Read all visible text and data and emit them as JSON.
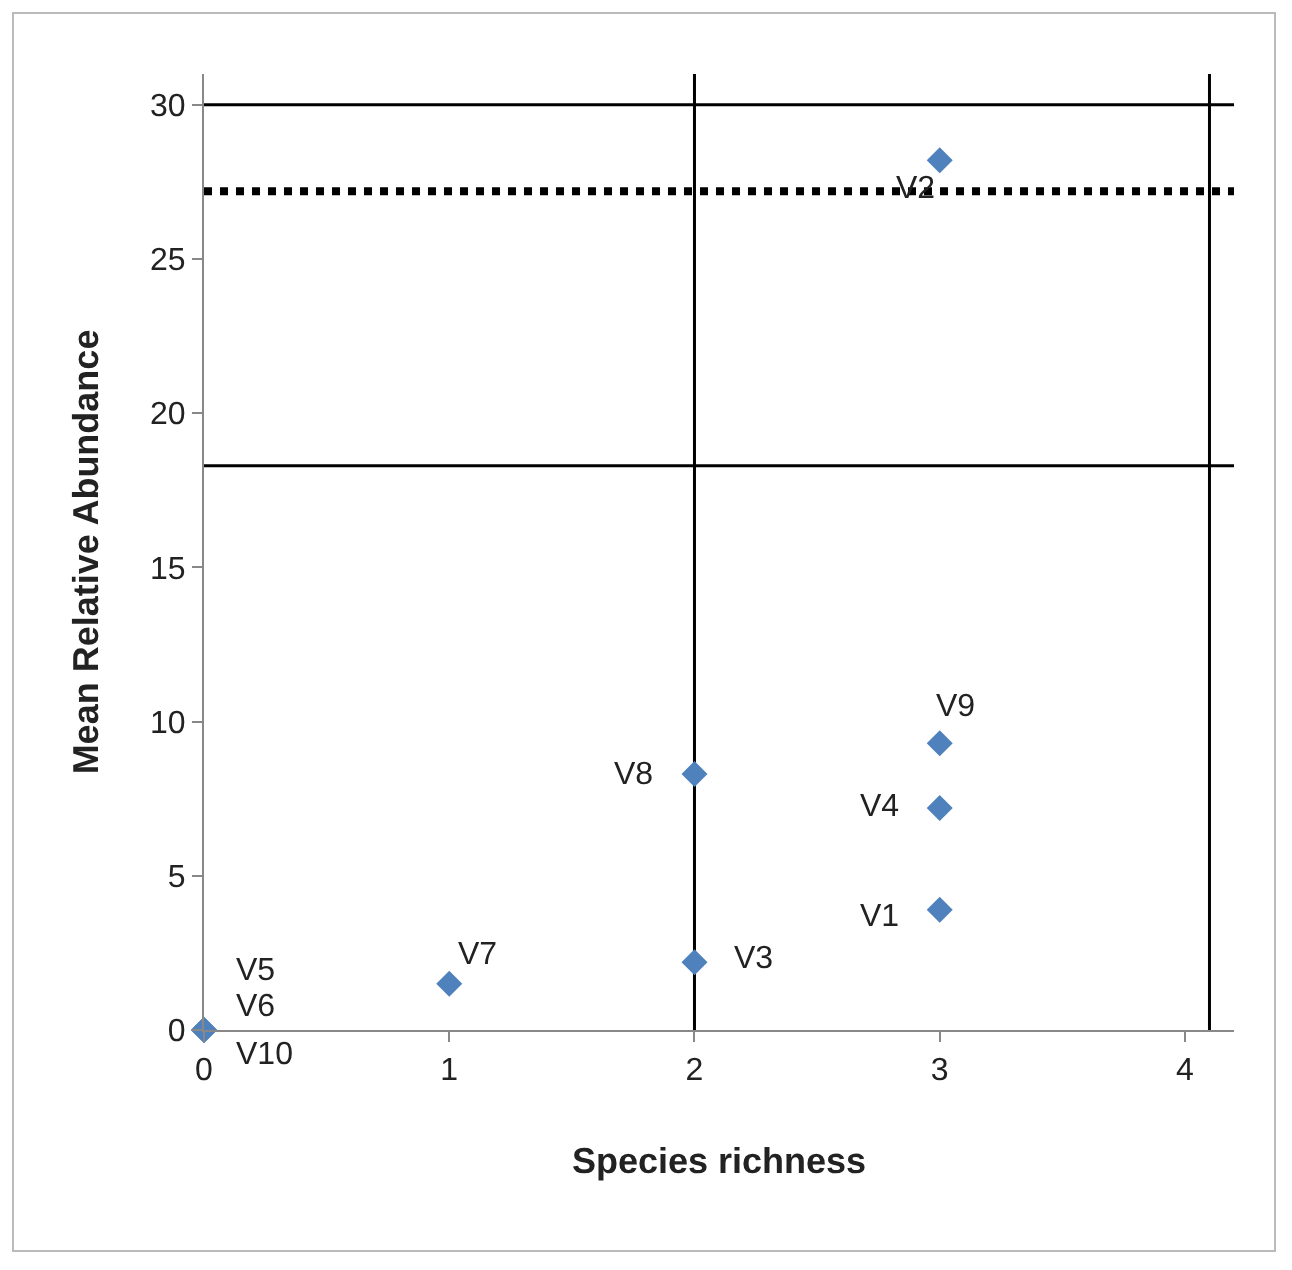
{
  "chart_data": {
    "type": "scatter",
    "xlabel": "Species richness",
    "ylabel": "Mean Relative Abundance",
    "x": [
      3,
      3,
      3,
      3,
      2,
      2,
      1,
      0,
      0,
      0
    ],
    "series": [
      {
        "color": "#4f81bd",
        "values": [
          28.2,
          9.3,
          7.2,
          3.9,
          8.3,
          2.2,
          1.5,
          0,
          0,
          0
        ]
      }
    ],
    "xlim": [
      0,
      4.2
    ],
    "xticks": [
      0,
      1,
      2,
      3,
      4
    ],
    "ylim": [
      0,
      31
    ],
    "yticks": [
      0,
      5,
      10,
      15,
      20,
      25,
      30
    ],
    "marker": "diamond",
    "grid": false,
    "ref_lines": [
      {
        "axis": "y",
        "value": 27.2,
        "line_style": "dotted",
        "color": "#000000"
      },
      {
        "axis": "y",
        "value": 18.3,
        "line_style": "solid",
        "color": "#000000"
      },
      {
        "axis": "y",
        "value": 30,
        "line_style": "solid",
        "color": "#000000"
      },
      {
        "axis": "x",
        "value": 2,
        "line_style": "solid",
        "color": "#000000"
      },
      {
        "axis": "x",
        "value": 4.1,
        "line_style": "solid",
        "color": "#000000"
      }
    ],
    "annotations": [
      {
        "text": "V2",
        "x": 3,
        "y": 28.2
      },
      {
        "text": "V9",
        "x": 3,
        "y": 9.3
      },
      {
        "text": "V4",
        "x": 3,
        "y": 7.2
      },
      {
        "text": "V1",
        "x": 3,
        "y": 3.9
      },
      {
        "text": "V8",
        "x": 2,
        "y": 8.3
      },
      {
        "text": "V3",
        "x": 2,
        "y": 2.2
      },
      {
        "text": "V7",
        "x": 1,
        "y": 1.5
      },
      {
        "text": "V5",
        "x": 0,
        "y": 0
      },
      {
        "text": "V6",
        "x": 0,
        "y": 0
      },
      {
        "text": "V10",
        "x": 0,
        "y": 0
      }
    ]
  }
}
